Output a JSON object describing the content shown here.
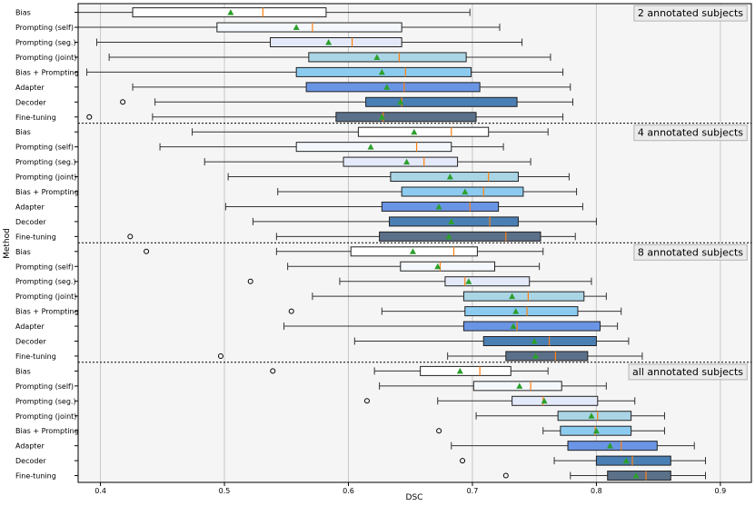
{
  "chart_data": {
    "type": "boxplot",
    "orientation": "horizontal",
    "xlabel": "DSC",
    "ylabel": "Method",
    "xlim": [
      0.382,
      0.925
    ],
    "xticks": [
      0.4,
      0.5,
      0.6,
      0.7,
      0.8,
      0.9
    ],
    "xtick_labels": [
      "0.4",
      "0.5",
      "0.6",
      "0.7",
      "0.8",
      "0.9"
    ],
    "grid": "vertical",
    "methods": [
      "Bias",
      "Prompting (self)",
      "Prompting (seg.)",
      "Prompting (joint)",
      "Bias + Prompting",
      "Adapter",
      "Decoder",
      "Fine-tuning"
    ],
    "colors": {
      "Bias": "#ffffff",
      "Prompting (self)": "#f4f8fd",
      "Prompting (seg.)": "#e4e9fa",
      "Prompting (joint)": "#aad5e4",
      "Bias + Prompting": "#8ccbf0",
      "Adapter": "#6a94e4",
      "Decoder": "#4a7fb4",
      "Fine-tuning": "#5b7089"
    },
    "mean_color": "#2ca02c",
    "median_color": "#ff7f0e",
    "groups": [
      {
        "label": "2 annotated subjects",
        "rows": [
          {
            "method": "Bias",
            "whislo": 0.382,
            "q1": 0.426,
            "median": 0.531,
            "q3": 0.582,
            "whishi": 0.698,
            "mean": 0.505,
            "fliers": []
          },
          {
            "method": "Prompting (self)",
            "whislo": 0.382,
            "q1": 0.494,
            "median": 0.571,
            "q3": 0.643,
            "whishi": 0.722,
            "mean": 0.558,
            "fliers": []
          },
          {
            "method": "Prompting (seg.)",
            "whislo": 0.397,
            "q1": 0.537,
            "median": 0.603,
            "q3": 0.643,
            "whishi": 0.74,
            "mean": 0.584,
            "fliers": []
          },
          {
            "method": "Prompting (joint)",
            "whislo": 0.407,
            "q1": 0.568,
            "median": 0.641,
            "q3": 0.695,
            "whishi": 0.763,
            "mean": 0.623,
            "fliers": []
          },
          {
            "method": "Bias + Prompting",
            "whislo": 0.389,
            "q1": 0.558,
            "median": 0.646,
            "q3": 0.699,
            "whishi": 0.773,
            "mean": 0.627,
            "fliers": []
          },
          {
            "method": "Adapter",
            "whislo": 0.426,
            "q1": 0.566,
            "median": 0.645,
            "q3": 0.706,
            "whishi": 0.779,
            "mean": 0.631,
            "fliers": []
          },
          {
            "method": "Decoder",
            "whislo": 0.444,
            "q1": 0.614,
            "median": 0.643,
            "q3": 0.736,
            "whishi": 0.781,
            "mean": 0.642,
            "fliers": [
              0.418
            ]
          },
          {
            "method": "Fine-tuning",
            "whislo": 0.442,
            "q1": 0.59,
            "median": 0.628,
            "q3": 0.703,
            "whishi": 0.773,
            "mean": 0.627,
            "fliers": [
              0.391
            ]
          }
        ]
      },
      {
        "label": "4 annotated subjects",
        "rows": [
          {
            "method": "Bias",
            "whislo": 0.474,
            "q1": 0.608,
            "median": 0.683,
            "q3": 0.713,
            "whishi": 0.761,
            "mean": 0.653,
            "fliers": []
          },
          {
            "method": "Prompting (self)",
            "whislo": 0.448,
            "q1": 0.558,
            "median": 0.655,
            "q3": 0.683,
            "whishi": 0.725,
            "mean": 0.618,
            "fliers": []
          },
          {
            "method": "Prompting (seg.)",
            "whislo": 0.484,
            "q1": 0.596,
            "median": 0.661,
            "q3": 0.688,
            "whishi": 0.747,
            "mean": 0.647,
            "fliers": []
          },
          {
            "method": "Prompting (joint)",
            "whislo": 0.503,
            "q1": 0.634,
            "median": 0.713,
            "q3": 0.737,
            "whishi": 0.778,
            "mean": 0.682,
            "fliers": []
          },
          {
            "method": "Bias + Prompting",
            "whislo": 0.543,
            "q1": 0.643,
            "median": 0.709,
            "q3": 0.741,
            "whishi": 0.784,
            "mean": 0.694,
            "fliers": []
          },
          {
            "method": "Adapter",
            "whislo": 0.501,
            "q1": 0.627,
            "median": 0.698,
            "q3": 0.721,
            "whishi": 0.789,
            "mean": 0.673,
            "fliers": []
          },
          {
            "method": "Decoder",
            "whislo": 0.523,
            "q1": 0.633,
            "median": 0.714,
            "q3": 0.737,
            "whishi": 0.8,
            "mean": 0.683,
            "fliers": []
          },
          {
            "method": "Fine-tuning",
            "whislo": 0.542,
            "q1": 0.625,
            "median": 0.727,
            "q3": 0.755,
            "whishi": 0.783,
            "mean": 0.681,
            "fliers": [
              0.424
            ]
          }
        ]
      },
      {
        "label": "8 annotated subjects",
        "rows": [
          {
            "method": "Bias",
            "whislo": 0.542,
            "q1": 0.602,
            "median": 0.685,
            "q3": 0.704,
            "whishi": 0.757,
            "mean": 0.652,
            "fliers": [
              0.437
            ]
          },
          {
            "method": "Prompting (self)",
            "whislo": 0.551,
            "q1": 0.642,
            "median": 0.674,
            "q3": 0.718,
            "whishi": 0.754,
            "mean": 0.672,
            "fliers": []
          },
          {
            "method": "Prompting (seg.)",
            "whislo": 0.593,
            "q1": 0.678,
            "median": 0.694,
            "q3": 0.746,
            "whishi": 0.796,
            "mean": 0.697,
            "fliers": [
              0.521
            ]
          },
          {
            "method": "Prompting (joint)",
            "whislo": 0.571,
            "q1": 0.693,
            "median": 0.745,
            "q3": 0.79,
            "whishi": 0.808,
            "mean": 0.732,
            "fliers": []
          },
          {
            "method": "Bias + Prompting",
            "whislo": 0.627,
            "q1": 0.694,
            "median": 0.744,
            "q3": 0.785,
            "whishi": 0.82,
            "mean": 0.735,
            "fliers": [
              0.554
            ]
          },
          {
            "method": "Adapter",
            "whislo": 0.548,
            "q1": 0.693,
            "median": 0.736,
            "q3": 0.803,
            "whishi": 0.817,
            "mean": 0.733,
            "fliers": []
          },
          {
            "method": "Decoder",
            "whislo": 0.605,
            "q1": 0.709,
            "median": 0.762,
            "q3": 0.8,
            "whishi": 0.826,
            "mean": 0.75,
            "fliers": []
          },
          {
            "method": "Fine-tuning",
            "whislo": 0.68,
            "q1": 0.727,
            "median": 0.767,
            "q3": 0.793,
            "whishi": 0.837,
            "mean": 0.751,
            "fliers": [
              0.497
            ]
          }
        ]
      },
      {
        "label": "all annotated subjects",
        "rows": [
          {
            "method": "Bias",
            "whislo": 0.621,
            "q1": 0.658,
            "median": 0.706,
            "q3": 0.731,
            "whishi": 0.761,
            "mean": 0.69,
            "fliers": [
              0.539
            ]
          },
          {
            "method": "Prompting (self)",
            "whislo": 0.625,
            "q1": 0.701,
            "median": 0.747,
            "q3": 0.772,
            "whishi": 0.808,
            "mean": 0.738,
            "fliers": []
          },
          {
            "method": "Prompting (seg.)",
            "whislo": 0.672,
            "q1": 0.732,
            "median": 0.757,
            "q3": 0.801,
            "whishi": 0.831,
            "mean": 0.758,
            "fliers": [
              0.615
            ]
          },
          {
            "method": "Prompting (joint)",
            "whislo": 0.703,
            "q1": 0.769,
            "median": 0.801,
            "q3": 0.828,
            "whishi": 0.855,
            "mean": 0.796,
            "fliers": []
          },
          {
            "method": "Bias + Prompting",
            "whislo": 0.757,
            "q1": 0.771,
            "median": 0.799,
            "q3": 0.828,
            "whishi": 0.855,
            "mean": 0.8,
            "fliers": [
              0.673
            ]
          },
          {
            "method": "Adapter",
            "whislo": 0.683,
            "q1": 0.777,
            "median": 0.82,
            "q3": 0.849,
            "whishi": 0.879,
            "mean": 0.811,
            "fliers": []
          },
          {
            "method": "Decoder",
            "whislo": 0.766,
            "q1": 0.8,
            "median": 0.829,
            "q3": 0.86,
            "whishi": 0.888,
            "mean": 0.824,
            "fliers": [
              0.692
            ]
          },
          {
            "method": "Fine-tuning",
            "whislo": 0.779,
            "q1": 0.809,
            "median": 0.84,
            "q3": 0.86,
            "whishi": 0.888,
            "mean": 0.832,
            "fliers": [
              0.727
            ]
          }
        ]
      }
    ]
  }
}
